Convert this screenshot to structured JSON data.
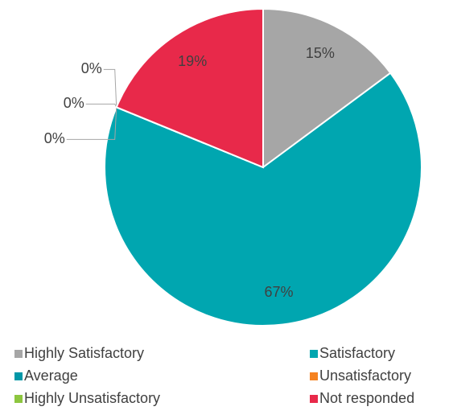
{
  "chart_data": {
    "type": "pie",
    "categories": [
      "Highly Satisfactory",
      "Satisfactory",
      "Average",
      "Unsatisfactory",
      "Highly Unsatisfactory",
      "Not responded"
    ],
    "values": [
      15,
      67,
      0,
      0,
      0,
      19
    ],
    "value_labels": [
      "15%",
      "67%",
      "0%",
      "0%",
      "0%",
      "19%"
    ],
    "colors": [
      "#a6a6a6",
      "#00a6b0",
      "#0097a7",
      "#f58220",
      "#8dc63f",
      "#e8294a"
    ],
    "legend": "bottom"
  }
}
